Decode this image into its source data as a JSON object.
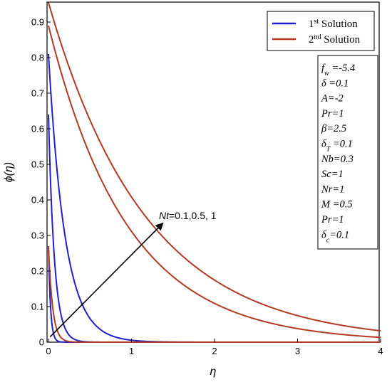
{
  "chart_data": {
    "type": "line",
    "xlabel": "η",
    "ylabel": "ϕ(η)",
    "xlim": [
      0,
      4
    ],
    "ylim": [
      0,
      0.96
    ],
    "x_ticks": [
      "0",
      "1",
      "2",
      "3",
      "4"
    ],
    "y_ticks": [
      "0",
      "0.1",
      "0.2",
      "0.3",
      "0.4",
      "0.5",
      "0.6",
      "0.7",
      "0.8",
      "0.9"
    ],
    "grid": false,
    "legend_position": "top-right",
    "legend": [
      {
        "label": "1",
        "sup": "st",
        "suffix": " Solution",
        "color": "#1f1fd0"
      },
      {
        "label": "2",
        "sup": "nd",
        "suffix": " Solution",
        "color": "#b23a22"
      }
    ],
    "parameters": [
      {
        "name": "f",
        "sub": "w",
        "value": " =-5.4"
      },
      {
        "name": "δ",
        "sub": "",
        "value": " =0.1"
      },
      {
        "name": "A",
        "sub": "",
        "value": "=-2"
      },
      {
        "name": "Pr",
        "sub": "",
        "value": "=1"
      },
      {
        "name": "β",
        "sub": "",
        "value": "=2.5"
      },
      {
        "name": "δ",
        "sub": "T",
        "value": " =0.1"
      },
      {
        "name": "Nb",
        "sub": "",
        "value": "=0.3"
      },
      {
        "name": "Sc",
        "sub": "",
        "value": "=1"
      },
      {
        "name": "Nr",
        "sub": "",
        "value": "=1"
      },
      {
        "name": "M",
        "sub": "",
        "value": " =0.5"
      },
      {
        "name": "Pr",
        "sub": "",
        "value": "=1"
      },
      {
        "name": "δ",
        "sub": "c",
        "value": "=0.1"
      }
    ],
    "annotation": {
      "var": "Nt",
      "text": "=0.1,0.5, 1",
      "arrow_from": [
        0.02,
        0.015
      ],
      "arrow_to": [
        1.38,
        0.335
      ]
    },
    "series": [
      {
        "name": "1st Solution",
        "group": 1,
        "y0": 0.27,
        "decay": 40,
        "color": "#1f1fd0"
      },
      {
        "name": "1st Solution",
        "group": 1,
        "y0": 0.64,
        "decay": 14,
        "color": "#1f1fd0"
      },
      {
        "name": "1st Solution",
        "group": 1,
        "y0": 0.81,
        "decay": 5.0,
        "color": "#1f1fd0"
      },
      {
        "name": "2nd Solution",
        "group": 2,
        "y0": 0.27,
        "decay": 20,
        "color": "#b23a22"
      },
      {
        "name": "2nd Solution",
        "group": 2,
        "y0": 0.89,
        "decay": 1.05,
        "color": "#b23a22"
      },
      {
        "name": "2nd Solution",
        "group": 2,
        "y0": 0.955,
        "decay": 0.85,
        "color": "#b23a22"
      }
    ]
  }
}
